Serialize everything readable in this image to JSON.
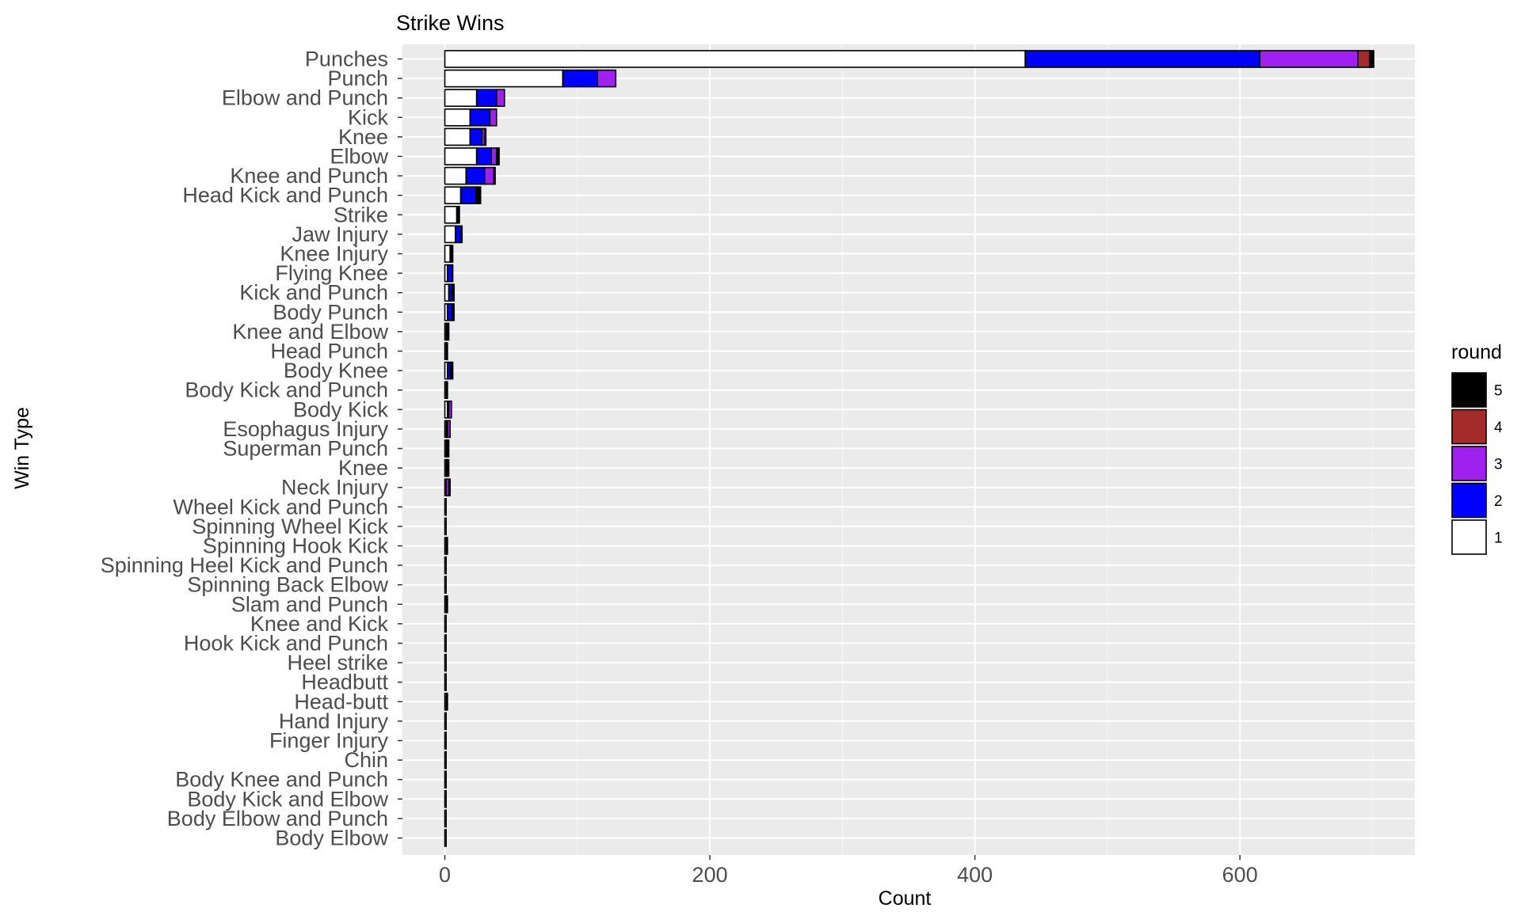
{
  "chart_data": {
    "type": "bar",
    "orientation": "horizontal",
    "stacked": true,
    "title": "Strike Wins",
    "xlabel": "Count",
    "ylabel": "Win Type",
    "xlim": [
      -32,
      732
    ],
    "xticks": [
      0,
      200,
      400,
      600
    ],
    "grid": true,
    "legend_position": "right",
    "legend_title": "round",
    "categories": [
      "Punches",
      "Punch",
      "Elbow and Punch",
      "Kick",
      "Knee",
      "Elbow",
      "Knee and Punch",
      "Head Kick and Punch",
      "Strike",
      "Jaw Injury",
      "Knee Injury",
      "Flying Knee",
      "Kick and Punch",
      "Body Punch",
      "Knee and Elbow",
      "Head Punch",
      "Body Knee",
      "Body Kick and Punch",
      "Body Kick",
      "Esophagus Injury",
      "Superman Punch",
      "Knee ",
      "Neck Injury",
      "Wheel Kick and Punch",
      "Spinning Wheel Kick",
      "Spinning Hook Kick",
      "Spinning Heel Kick and Punch",
      "Spinning Back Elbow",
      "Slam and Punch",
      "Knee and Kick",
      "Hook Kick and Punch",
      "Heel strike",
      "Headbutt",
      "Head-butt",
      "Hand Injury",
      "Finger Injury",
      "Chin",
      "Body Knee and Punch",
      "Body Kick and Elbow",
      "Body Elbow and Punch",
      "Body Elbow"
    ],
    "series": [
      {
        "name": "1",
        "color": "#ffffff",
        "values": [
          438,
          89,
          24,
          19,
          19,
          24,
          16,
          12,
          9,
          8,
          4,
          2,
          3,
          2,
          1,
          1,
          2,
          1,
          2,
          1,
          1,
          1,
          1,
          1,
          1,
          1,
          1,
          1,
          1,
          1,
          1,
          1,
          1,
          1,
          1,
          1,
          1,
          1,
          1,
          1,
          1
        ]
      },
      {
        "name": "2",
        "color": "#0000ff",
        "values": [
          177,
          26,
          15,
          15,
          9,
          11,
          14,
          11,
          1,
          4,
          1,
          3,
          2,
          3,
          0,
          0,
          2,
          0,
          1,
          1,
          1,
          1,
          0,
          0,
          0,
          0,
          0,
          0,
          0,
          0,
          0,
          0,
          0,
          0,
          0,
          0,
          0,
          0,
          0,
          0,
          0
        ]
      },
      {
        "name": "3",
        "color": "#a020f0",
        "values": [
          74,
          14,
          6,
          5,
          2,
          4,
          7,
          1,
          0,
          0,
          0,
          1,
          1,
          1,
          1,
          0,
          1,
          0,
          2,
          2,
          0,
          0,
          2,
          0,
          0,
          0,
          0,
          0,
          0,
          0,
          0,
          0,
          0,
          0,
          0,
          0,
          0,
          0,
          0,
          0,
          0
        ]
      },
      {
        "name": "4",
        "color": "#a52a2a",
        "values": [
          9,
          0,
          0,
          0,
          0,
          1,
          0,
          0,
          0,
          0,
          0,
          0,
          0,
          0,
          0,
          0,
          0,
          0,
          0,
          0,
          0,
          0,
          0,
          0,
          0,
          0,
          0,
          0,
          0,
          0,
          0,
          0,
          0,
          0,
          0,
          0,
          0,
          0,
          0,
          0,
          0
        ]
      },
      {
        "name": "5",
        "color": "#000000",
        "values": [
          3,
          0,
          0,
          0,
          1,
          1,
          1,
          3,
          1,
          1,
          1,
          0,
          1,
          1,
          1,
          1,
          1,
          1,
          0,
          0,
          1,
          1,
          1,
          0,
          0,
          1,
          0,
          0,
          1,
          0,
          0,
          0,
          0,
          1,
          0,
          0,
          0,
          0,
          0,
          0,
          0
        ]
      }
    ]
  }
}
